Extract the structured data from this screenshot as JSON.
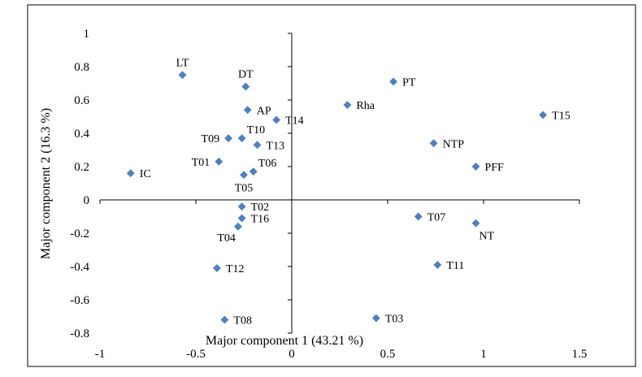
{
  "chart_data": {
    "type": "scatter",
    "title": "",
    "xlabel": "Major component 1 (43.21 %)",
    "ylabel": "Major component 2 (16.3 %)",
    "xlim": [
      -1,
      1.5
    ],
    "ylim": [
      -0.8,
      1
    ],
    "x_ticks": [
      -1,
      -0.5,
      0,
      0.5,
      1,
      1.5
    ],
    "x_tick_labels": [
      "-1",
      "-0.5",
      "0",
      "0.5",
      "1",
      "1.5"
    ],
    "y_ticks": [
      1,
      0.8,
      0.6,
      0.4,
      0.2,
      0,
      -0.2,
      -0.4,
      -0.6,
      -0.8
    ],
    "y_tick_labels": [
      "1",
      "0.8",
      "0.6",
      "0.4",
      "0.2",
      "0",
      "-0.2",
      "-0.4",
      "-0.6",
      "-0.8"
    ],
    "marker_color": "#4f81bd",
    "grid": false,
    "legend": "none",
    "points": [
      {
        "label": "LT",
        "x": -0.57,
        "y": 0.75,
        "pos": "above"
      },
      {
        "label": "DT",
        "x": -0.24,
        "y": 0.68,
        "pos": "above"
      },
      {
        "label": "AP",
        "x": -0.23,
        "y": 0.54,
        "pos": "right"
      },
      {
        "label": "Rha",
        "x": 0.29,
        "y": 0.57,
        "pos": "right"
      },
      {
        "label": "PT",
        "x": 0.53,
        "y": 0.71,
        "pos": "right"
      },
      {
        "label": "T15",
        "x": 1.31,
        "y": 0.51,
        "pos": "right"
      },
      {
        "label": "T14",
        "x": -0.08,
        "y": 0.48,
        "pos": "right"
      },
      {
        "label": "T10",
        "x": -0.26,
        "y": 0.37,
        "pos": "aboveright"
      },
      {
        "label": "T09",
        "x": -0.33,
        "y": 0.37,
        "pos": "left"
      },
      {
        "label": "T13",
        "x": -0.18,
        "y": 0.33,
        "pos": "right"
      },
      {
        "label": "NTP",
        "x": 0.74,
        "y": 0.34,
        "pos": "right"
      },
      {
        "label": "T01",
        "x": -0.38,
        "y": 0.23,
        "pos": "left"
      },
      {
        "label": "T06",
        "x": -0.2,
        "y": 0.17,
        "pos": "aboveright"
      },
      {
        "label": "T05",
        "x": -0.25,
        "y": 0.15,
        "pos": "below"
      },
      {
        "label": "PFF",
        "x": 0.96,
        "y": 0.2,
        "pos": "right"
      },
      {
        "label": "IC",
        "x": -0.84,
        "y": 0.16,
        "pos": "right"
      },
      {
        "label": "T02",
        "x": -0.26,
        "y": -0.04,
        "pos": "right"
      },
      {
        "label": "T16",
        "x": -0.26,
        "y": -0.11,
        "pos": "right"
      },
      {
        "label": "T04",
        "x": -0.28,
        "y": -0.16,
        "pos": "belowleft"
      },
      {
        "label": "T07",
        "x": 0.66,
        "y": -0.1,
        "pos": "right"
      },
      {
        "label": "NT",
        "x": 0.96,
        "y": -0.14,
        "pos": "belowright"
      },
      {
        "label": "T12",
        "x": -0.39,
        "y": -0.41,
        "pos": "right"
      },
      {
        "label": "T11",
        "x": 0.76,
        "y": -0.39,
        "pos": "right"
      },
      {
        "label": "T08",
        "x": -0.35,
        "y": -0.72,
        "pos": "right"
      },
      {
        "label": "T03",
        "x": 0.44,
        "y": -0.71,
        "pos": "right"
      }
    ]
  }
}
